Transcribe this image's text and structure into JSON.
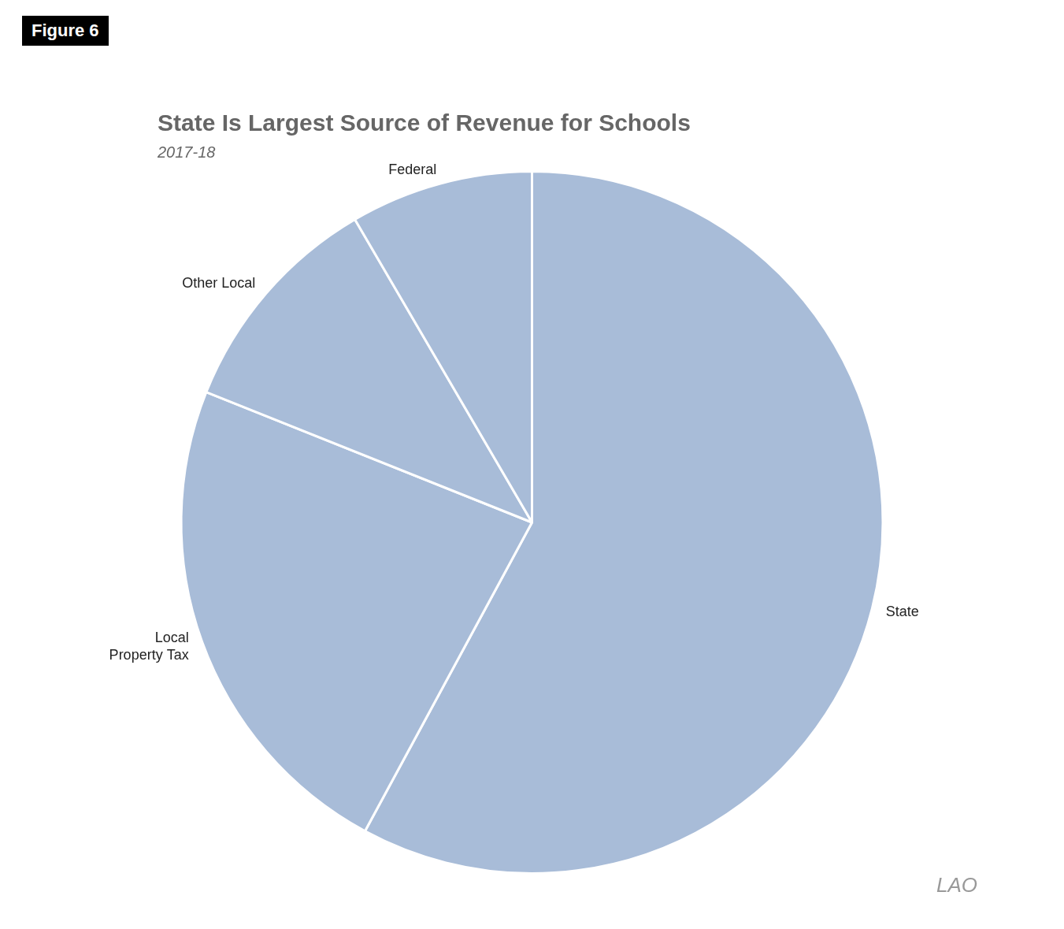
{
  "chart_data": {
    "type": "pie",
    "title": "State Is Largest Source of Revenue for Schools",
    "subtitle": "2017-18",
    "categories": [
      "State",
      "Local\nProperty Tax",
      "Other Local",
      "Federal"
    ],
    "values": [
      55,
      22,
      10,
      8
    ],
    "color": "#a8bcd8",
    "annotations": [
      "Figure 6",
      "LAO"
    ]
  }
}
